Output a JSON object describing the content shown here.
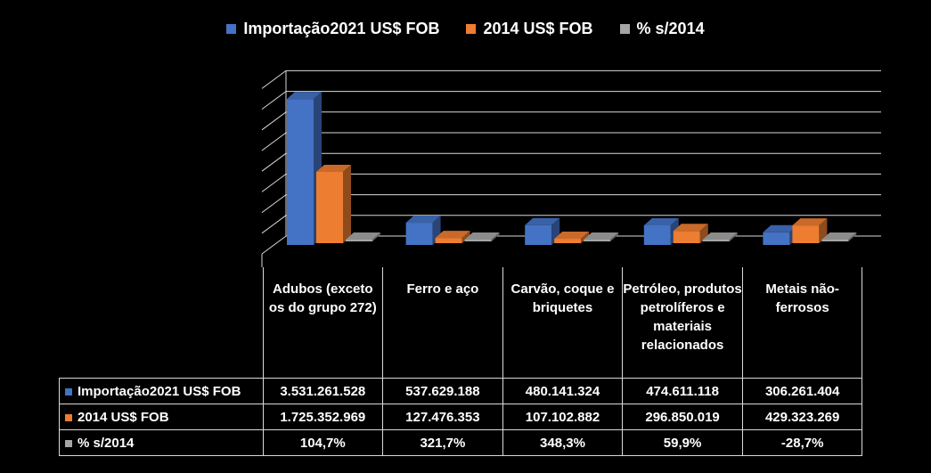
{
  "chart_data": {
    "type": "bar",
    "categories": [
      "Adubos (exceto os do grupo 272)",
      "Ferro e aço",
      "Carvão, coque e briquetes",
      "Petróleo, produtos petrolíferos e materiais relacionados",
      "Metais não-ferrosos"
    ],
    "series": [
      {
        "name": "Importação2021 US$ FOB",
        "color": "#4472c4",
        "values": [
          3531261528,
          537629188,
          480141324,
          474611118,
          306261404
        ],
        "labels": [
          "3.531.261.528",
          "537.629.188",
          "480.141.324",
          "474.611.118",
          "306.261.404"
        ]
      },
      {
        "name": "2014 US$ FOB",
        "color": "#ed7d31",
        "values": [
          1725352969,
          127476353,
          107102882,
          296850019,
          429323269
        ],
        "labels": [
          "1.725.352.969",
          "127.476.353",
          "107.102.882",
          "296.850.019",
          "429.323.269"
        ]
      },
      {
        "name": "% s/2014",
        "color": "#a5a5a5",
        "values": [
          104.7,
          321.7,
          348.3,
          59.9,
          -28.7
        ],
        "labels": [
          "104,7%",
          "321,7%",
          "348,3%",
          "59,9%",
          "-28,7%"
        ]
      }
    ],
    "ylim": [
      0,
      4000000000
    ],
    "grid": true,
    "legend": "top",
    "data_table": true
  }
}
